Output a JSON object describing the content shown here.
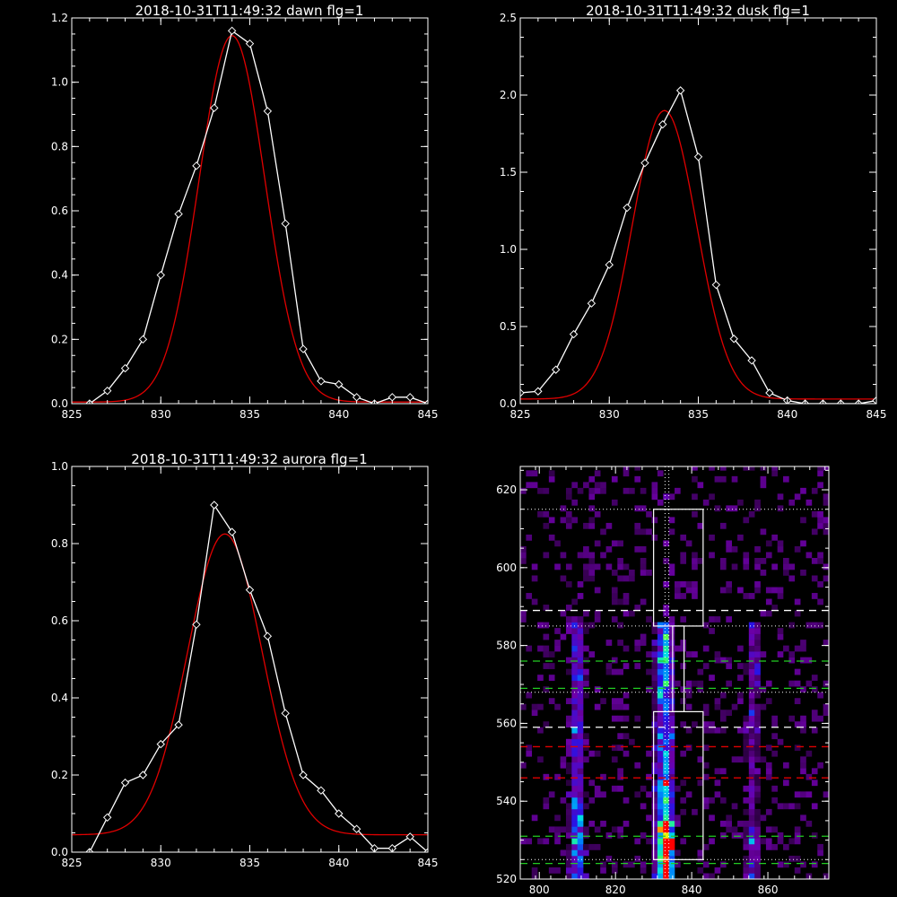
{
  "colors": {
    "background": "#000000",
    "axes": "#ffffff",
    "data_line": "#ffffff",
    "fit_line": "#e00000",
    "green_lines": "#22cc22",
    "red_lines": "#e00000"
  },
  "chart_data": [
    {
      "type": "line",
      "title": "2018-10-31T11:49:32 dawn flg=1",
      "xlabel": "",
      "ylabel": "",
      "xlim": [
        825,
        845
      ],
      "ylim": [
        0,
        1.2
      ],
      "xticks": [
        825,
        830,
        835,
        840,
        845
      ],
      "xtick_labels": [
        "825",
        "830",
        "835",
        "840",
        "845"
      ],
      "yticks": [
        0,
        0.2,
        0.4,
        0.6,
        0.8,
        1.0,
        1.2
      ],
      "ytick_labels": [
        "0.0",
        "0.2",
        "0.4",
        "0.6",
        "0.8",
        "1.0",
        "1.2"
      ],
      "series": [
        {
          "style": "white-diamonds",
          "x": [
            826,
            827,
            828,
            829,
            830,
            831,
            832,
            833,
            834,
            835,
            836,
            837,
            838,
            839,
            840,
            841,
            842,
            843,
            844,
            845
          ],
          "y": [
            0.0,
            0.04,
            0.11,
            0.2,
            0.4,
            0.59,
            0.74,
            0.92,
            1.16,
            1.12,
            0.91,
            0.56,
            0.17,
            0.07,
            0.06,
            0.02,
            0.0,
            0.02,
            0.02,
            0.0
          ]
        },
        {
          "style": "red-gaussian-fit",
          "amplitude": 1.14,
          "center": 834.0,
          "sigma": 1.85,
          "offset": 0.005
        }
      ]
    },
    {
      "type": "line",
      "title": "2018-10-31T11:49:32 dusk flg=1",
      "xlabel": "",
      "ylabel": "",
      "xlim": [
        825,
        845
      ],
      "ylim": [
        0,
        2.5
      ],
      "xticks": [
        825,
        830,
        835,
        840,
        845
      ],
      "xtick_labels": [
        "825",
        "830",
        "835",
        "840",
        "845"
      ],
      "yticks": [
        0,
        0.5,
        1.0,
        1.5,
        2.0,
        2.5
      ],
      "ytick_labels": [
        "0.0",
        "0.5",
        "1.0",
        "1.5",
        "2.0",
        "2.5"
      ],
      "series": [
        {
          "style": "white-diamonds",
          "x": [
            825,
            826,
            827,
            828,
            829,
            830,
            831,
            832,
            833,
            834,
            835,
            836,
            837,
            838,
            839,
            840,
            841,
            842,
            843,
            844,
            845
          ],
          "y": [
            0.07,
            0.08,
            0.22,
            0.45,
            0.65,
            0.9,
            1.27,
            1.56,
            1.81,
            2.03,
            1.6,
            0.77,
            0.42,
            0.28,
            0.07,
            0.02,
            0.0,
            0.0,
            0.0,
            0.0,
            0.02
          ]
        },
        {
          "style": "red-gaussian-fit",
          "amplitude": 1.87,
          "center": 833.1,
          "sigma": 1.8,
          "offset": 0.03
        }
      ]
    },
    {
      "type": "line",
      "title": "2018-10-31T11:49:32 aurora flg=1",
      "xlabel": "",
      "ylabel": "",
      "xlim": [
        825,
        845
      ],
      "ylim": [
        0,
        1.0
      ],
      "xticks": [
        825,
        830,
        835,
        840,
        845
      ],
      "xtick_labels": [
        "825",
        "830",
        "835",
        "840",
        "845"
      ],
      "yticks": [
        0,
        0.2,
        0.4,
        0.6,
        0.8,
        1.0
      ],
      "ytick_labels": [
        "0.0",
        "0.2",
        "0.4",
        "0.6",
        "0.8",
        "1.0"
      ],
      "series": [
        {
          "style": "white-diamonds",
          "x": [
            826,
            827,
            828,
            829,
            830,
            831,
            832,
            833,
            834,
            835,
            836,
            837,
            838,
            839,
            840,
            841,
            842,
            843,
            844,
            845
          ],
          "y": [
            0.0,
            0.09,
            0.18,
            0.2,
            0.28,
            0.33,
            0.59,
            0.9,
            0.83,
            0.68,
            0.56,
            0.36,
            0.2,
            0.16,
            0.1,
            0.06,
            0.01,
            0.01,
            0.04,
            0.0
          ]
        },
        {
          "style": "red-gaussian-fit",
          "amplitude": 0.78,
          "center": 833.6,
          "sigma": 2.1,
          "offset": 0.045
        }
      ]
    },
    {
      "type": "heatmap",
      "title": "",
      "xlabel": "",
      "ylabel": "",
      "xlim": [
        795,
        876
      ],
      "ylim": [
        520,
        626
      ],
      "xticks": [
        800,
        820,
        840,
        860
      ],
      "xtick_labels": [
        "800",
        "820",
        "840",
        "860"
      ],
      "yticks": [
        520,
        540,
        560,
        580,
        600,
        620
      ],
      "ytick_labels": [
        "520",
        "540",
        "560",
        "580",
        "600",
        "620"
      ],
      "colormap": "rainbow-on-black",
      "bright_columns_x": [
        810,
        833,
        856
      ],
      "boxes": [
        {
          "x": [
            830,
            843
          ],
          "y": [
            585,
            615
          ]
        },
        {
          "x": [
            835,
            838
          ],
          "y": [
            563,
            585
          ]
        },
        {
          "x": [
            830,
            843
          ],
          "y": [
            525,
            563
          ]
        }
      ],
      "vertical_dotted_x": [
        833,
        834
      ],
      "white_dotted_y": [
        615,
        585,
        568,
        525
      ],
      "white_dashed_y": [
        589,
        559
      ],
      "green_dashed_y": [
        576,
        569,
        531,
        524
      ],
      "red_dashed_y": [
        554,
        546
      ]
    }
  ]
}
